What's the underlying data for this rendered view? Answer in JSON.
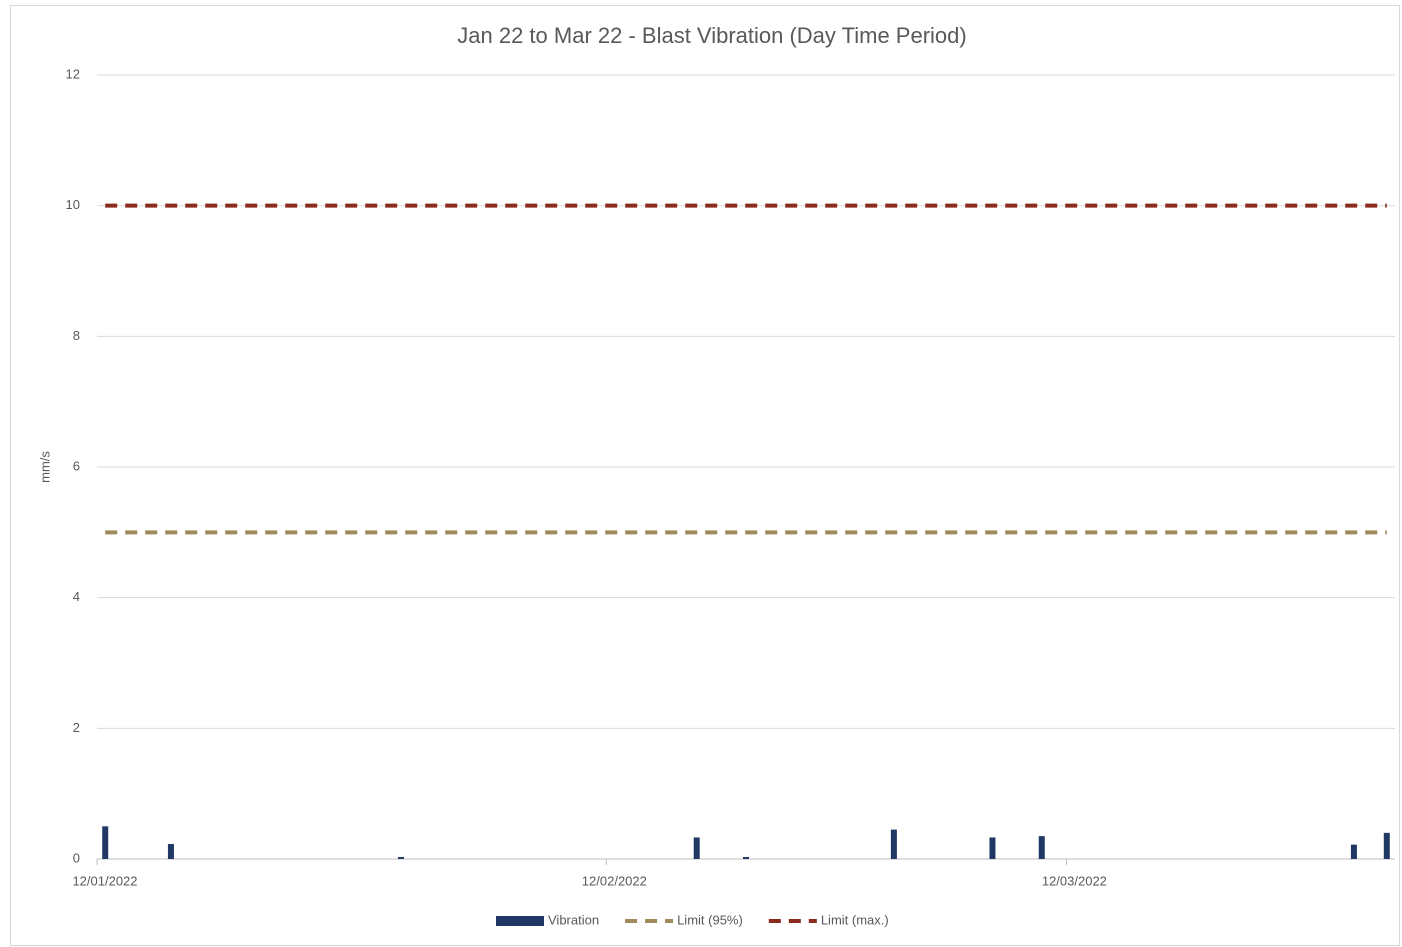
{
  "chart_data": {
    "type": "bar",
    "title": "Jan 22 to Mar 22 - Blast Vibration (Day Time Period)",
    "y_label": "mm/s",
    "x": [
      "2022-01-12",
      "2022-01-16",
      "2022-01-30",
      "2022-02-17",
      "2022-02-20",
      "2022-03-01",
      "2022-03-07",
      "2022-03-10",
      "2022-03-29",
      "2022-03-31"
    ],
    "series": [
      {
        "name": "Vibration",
        "type": "bar",
        "color": "#1f3864",
        "values": [
          0.5,
          0.23,
          0.03,
          0.33,
          0.03,
          0.45,
          0.33,
          0.35,
          0.22,
          0.4
        ]
      },
      {
        "name": "Limit (95%)",
        "type": "line",
        "dashed": true,
        "color": "#a0895a",
        "values": [
          5,
          5,
          5,
          5,
          5,
          5,
          5,
          5,
          5,
          5
        ]
      },
      {
        "name": "Limit (max.)",
        "type": "line",
        "dashed": true,
        "color": "#8b2a1f",
        "values": [
          10,
          10,
          10,
          10,
          10,
          10,
          10,
          10,
          10,
          10
        ]
      }
    ],
    "xlim": [
      "2022-01-12",
      "2022-04-01"
    ],
    "xticks": [
      {
        "value": "2022-01-12",
        "label": "12/01/2022"
      },
      {
        "value": "2022-02-12",
        "label": "12/02/2022"
      },
      {
        "value": "2022-03-12",
        "label": "12/03/2022"
      }
    ],
    "ylim": [
      0,
      12
    ],
    "yticks": [
      0,
      2,
      4,
      6,
      8,
      10,
      12
    ],
    "grid": true,
    "legend": "bottom"
  }
}
